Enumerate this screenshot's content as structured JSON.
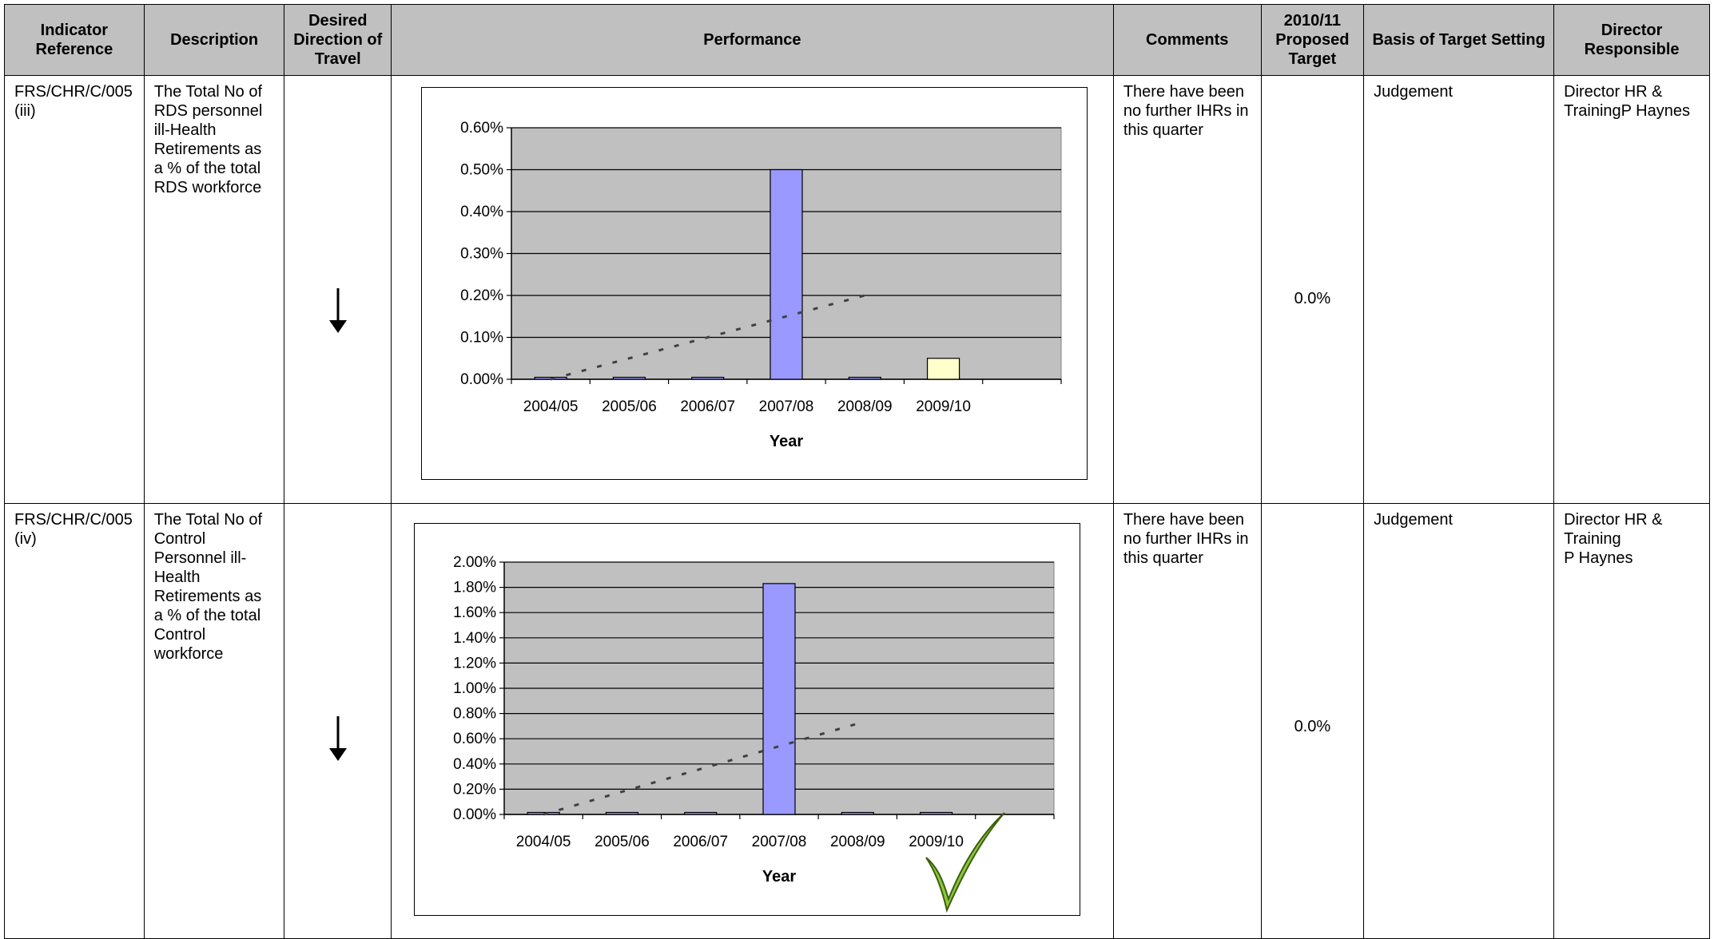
{
  "headers": {
    "indicator": "Indicator Reference",
    "description": "Description",
    "direction": "Desired Direction of Travel",
    "performance": "Performance",
    "comments": "Comments",
    "target": "2010/11 Proposed Target",
    "basis": "Basis of Target Setting",
    "director": "Director Responsible"
  },
  "rows": [
    {
      "indicator": "FRS/CHR/C/005 (iii)",
      "description": "The Total No of RDS personnel ill-Health Retirements as a % of the total RDS workforce",
      "direction_icon": "down-arrow-icon",
      "comments": "There have been no further IHRs in this quarter",
      "target": "0.0%",
      "basis": "Judgement",
      "director": "Director HR & TrainingP Haynes"
    },
    {
      "indicator": "FRS/CHR/C/005 (iv)",
      "description": "The Total No of Control Personnel ill-Health Retirements as a % of the total Control workforce",
      "direction_icon": "down-arrow-icon",
      "comments": "There have been no further IHRs in this quarter",
      "target": "0.0%",
      "basis": "Judgement",
      "director_line1": "Director HR & Training",
      "director_line2": "P Haynes",
      "status_icon": "checkmark-icon"
    }
  ],
  "chart_data": [
    {
      "type": "bar",
      "categories": [
        "2004/05",
        "2005/06",
        "2006/07",
        "2007/08",
        "2008/09",
        "2009/10"
      ],
      "series": [
        {
          "values": [
            0.0,
            0.0,
            0.0,
            0.5,
            0.0,
            0.0
          ]
        },
        {
          "values": [
            null,
            null,
            null,
            null,
            null,
            0.05
          ]
        }
      ],
      "trendline": {
        "from": 0.0,
        "to": 0.2,
        "x_end": "2008/09"
      },
      "xlabel": "Year",
      "ylabel": "",
      "ylim": [
        0,
        0.6
      ],
      "yticks": [
        "0.00%",
        "0.10%",
        "0.20%",
        "0.30%",
        "0.40%",
        "0.50%",
        "0.60%"
      ],
      "grid": true,
      "colors": {
        "bar": "#9999ff",
        "bar_highlight": "#ffffcc",
        "plot_bg": "#c0c0c0"
      }
    },
    {
      "type": "bar",
      "categories": [
        "2004/05",
        "2005/06",
        "2006/07",
        "2007/08",
        "2008/09",
        "2009/10"
      ],
      "series": [
        {
          "values": [
            0.0,
            0.0,
            0.0,
            1.83,
            0.0,
            0.0
          ]
        }
      ],
      "trendline": {
        "from": 0.0,
        "to": 0.72,
        "x_end": "2008/09"
      },
      "xlabel": "Year",
      "ylabel": "",
      "ylim": [
        0,
        2.0
      ],
      "yticks": [
        "0.00%",
        "0.20%",
        "0.40%",
        "0.60%",
        "0.80%",
        "1.00%",
        "1.20%",
        "1.40%",
        "1.60%",
        "1.80%",
        "2.00%"
      ],
      "grid": true,
      "colors": {
        "bar": "#9999ff",
        "plot_bg": "#c0c0c0",
        "check": "#8cc63f"
      }
    }
  ]
}
